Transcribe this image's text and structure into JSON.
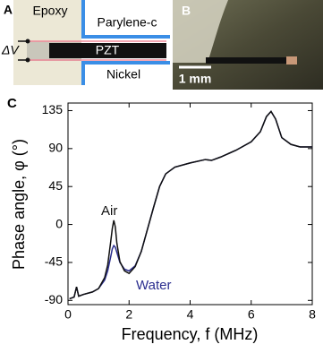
{
  "panels": {
    "a": {
      "label": "A",
      "epoxy": "Epoxy",
      "parylene": "Parylene-c",
      "pzt": "PZT",
      "voltage": "ΔV",
      "nickel": "Nickel"
    },
    "b": {
      "label": "B",
      "scale": "1 mm"
    },
    "c": {
      "label": "C"
    }
  },
  "chart_data": {
    "type": "line",
    "x_label": "Frequency, f (MHz)",
    "y_label": "Phase angle, φ (°)",
    "x": [
      0.05,
      0.2,
      0.28,
      0.35,
      0.5,
      0.8,
      1.0,
      1.2,
      1.3,
      1.4,
      1.45,
      1.5,
      1.55,
      1.6,
      1.7,
      1.85,
      2.0,
      2.2,
      2.4,
      2.6,
      2.8,
      3.0,
      3.2,
      3.5,
      4.0,
      4.5,
      4.7,
      5.0,
      5.5,
      6.0,
      6.3,
      6.5,
      6.65,
      6.8,
      7.0,
      7.3,
      7.6,
      8.0
    ],
    "series": [
      {
        "name": "Water",
        "color": "#2b2e8f",
        "values": [
          -88,
          -86,
          -74,
          -85,
          -83,
          -80,
          -76,
          -66,
          -55,
          -38,
          -29,
          -25,
          -27,
          -33,
          -45,
          -53,
          -55,
          -49,
          -32,
          -6,
          20,
          45,
          60,
          68,
          73,
          77,
          76,
          80,
          88,
          98,
          110,
          128,
          134,
          125,
          103,
          95,
          92,
          92
        ]
      },
      {
        "name": "Air",
        "color": "#111111",
        "values": [
          -88,
          -86,
          -74,
          -85,
          -83,
          -80,
          -76,
          -63,
          -48,
          -20,
          -5,
          5,
          -3,
          -22,
          -44,
          -55,
          -58,
          -50,
          -32,
          -6,
          20,
          45,
          60,
          68,
          73,
          77,
          76,
          80,
          88,
          98,
          110,
          128,
          134,
          125,
          103,
          95,
          92,
          92
        ]
      }
    ],
    "xlim": [
      0,
      8
    ],
    "ylim": [
      -95,
      144
    ],
    "xticks": [
      0,
      2,
      4,
      6,
      8
    ],
    "yticks": [
      -90,
      -45,
      0,
      45,
      90,
      135
    ]
  }
}
